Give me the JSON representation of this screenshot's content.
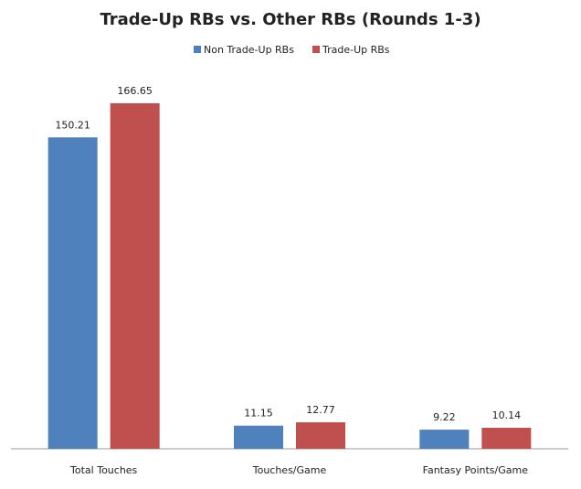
{
  "chart_data": {
    "type": "bar",
    "title": "Trade-Up RBs vs. Other RBs (Rounds 1-3)",
    "categories": [
      "Total Touches",
      "Touches/Game",
      "Fantasy Points/Game"
    ],
    "series": [
      {
        "name": "Non Trade-Up RBs",
        "color": "#4f81bd",
        "values": [
          150.21,
          11.15,
          9.22
        ]
      },
      {
        "name": "Trade-Up RBs",
        "color": "#c0504d",
        "values": [
          166.65,
          12.77,
          10.14
        ]
      }
    ],
    "legend": "top"
  }
}
